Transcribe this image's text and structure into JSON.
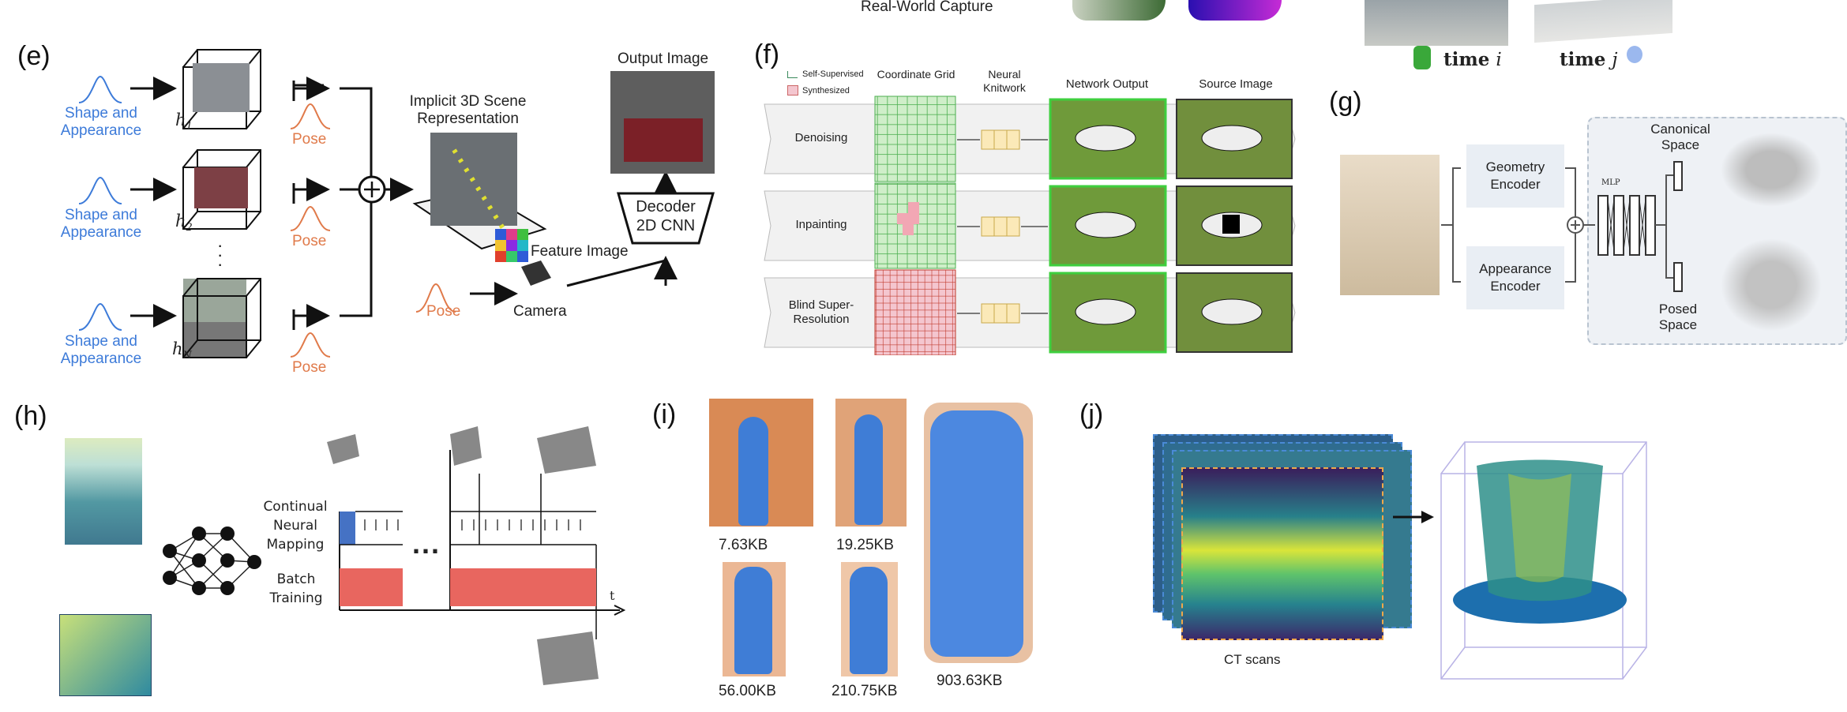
{
  "top": {
    "realworld": "Real-World Capture",
    "time_i": "time",
    "time_i_var": "i",
    "time_j": "time",
    "time_j_var": "j"
  },
  "e": {
    "label": "(e)",
    "shape_app": "Shape and Appearance",
    "h1": "h",
    "h1_sub": "1",
    "h2": "h",
    "h2_sub": "2",
    "hN": "h",
    "hN_sub": "N",
    "pose": "Pose",
    "scene": "Implicit 3D Scene Representation",
    "feature": "Feature Image",
    "camera": "Camera",
    "output": "Output Image",
    "decoder_l1": "Decoder",
    "decoder_l2": "2D CNN"
  },
  "f": {
    "label": "(f)",
    "legend_self": "Self-Supervised",
    "legend_synth": "Synthesized",
    "col_grid": "Coordinate Grid",
    "col_neural": "Neural Knitwork",
    "col_out": "Network Output",
    "col_src": "Source Image",
    "rows": [
      "Denoising",
      "Inpainting",
      "Blind Super-Resolution"
    ]
  },
  "g": {
    "label": "(g)",
    "geo": "Geometry Encoder",
    "app": "Appearance Encoder",
    "mlp": "MLP",
    "canonical": "Canonical Space",
    "posed": "Posed Space"
  },
  "h": {
    "label": "(h)",
    "cont": "Continual Neural Mapping",
    "batch": "Batch Training",
    "dots": "...",
    "t": "t"
  },
  "i": {
    "label": "(i)",
    "sizes": [
      "7.63KB",
      "19.25KB",
      "903.63KB",
      "56.00KB",
      "210.75KB"
    ]
  },
  "j": {
    "label": "(j)",
    "ct": "CT scans"
  },
  "colors": {
    "accent_blue": "#3d7bd9",
    "pose_orange": "#e07a4a",
    "green_frame": "#3ecf3e",
    "inpaint_pink": "#f2a7b4",
    "grid_green": "#cfeec9",
    "grid_red": "#f4c6cf",
    "knit": "#fbe9b8"
  }
}
